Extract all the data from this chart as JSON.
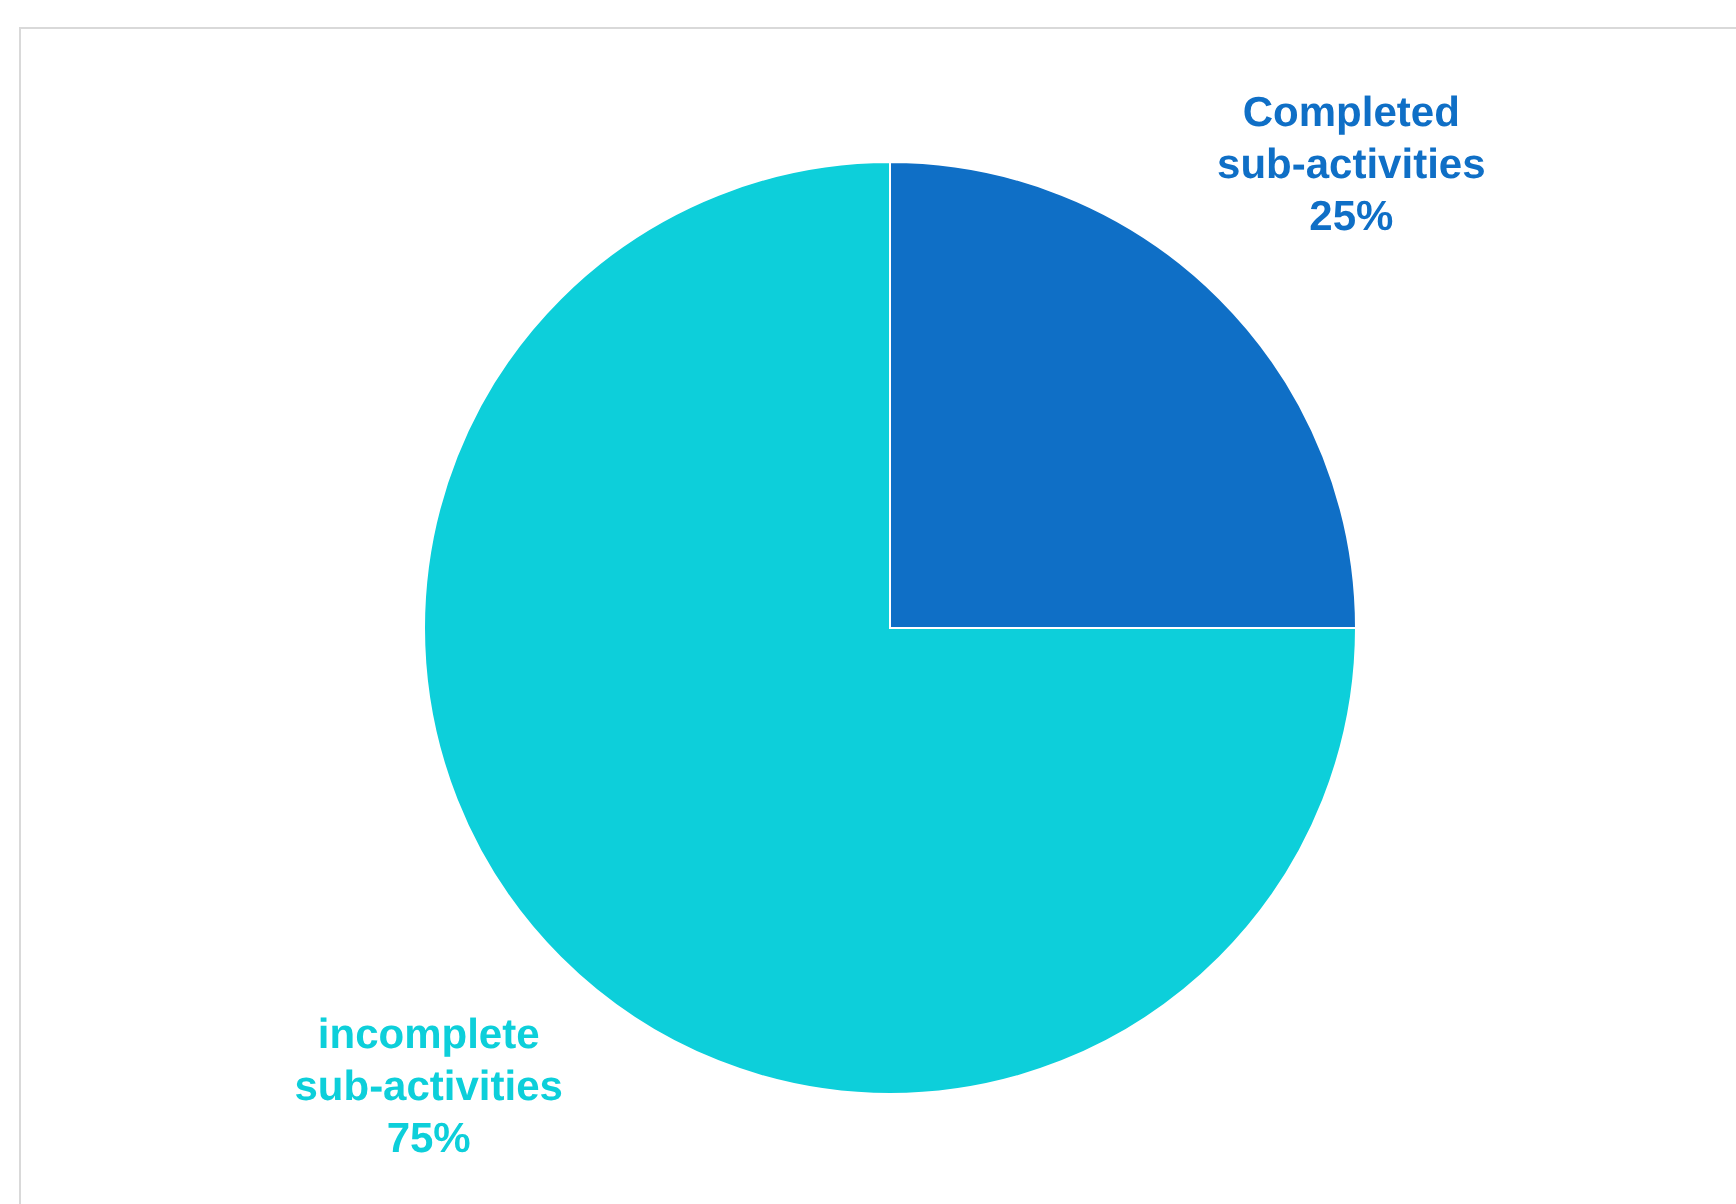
{
  "chart_data": {
    "type": "pie",
    "categories": [
      "Completed sub-activities",
      "incomplete sub-activities"
    ],
    "values": [
      25,
      75
    ],
    "colors": [
      "#0f6fc6",
      "#0dcfda"
    ],
    "value_labels": [
      "25%",
      "75%"
    ]
  }
}
